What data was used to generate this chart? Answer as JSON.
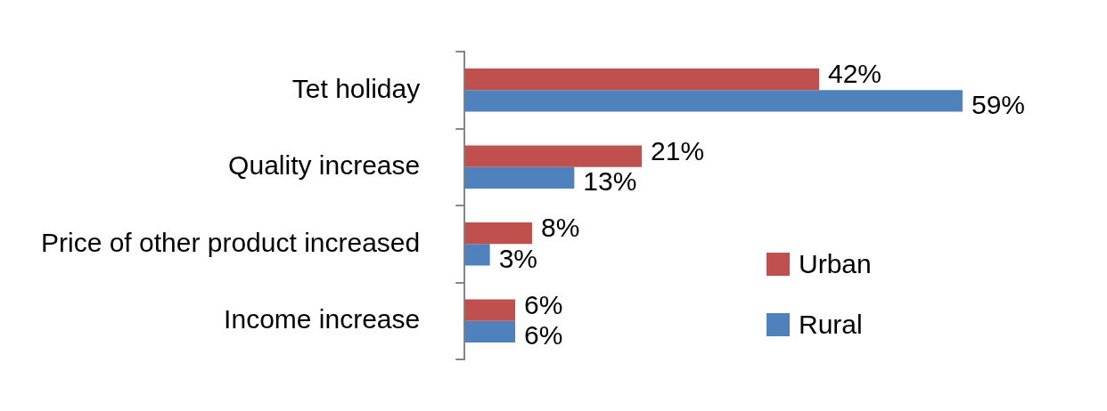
{
  "chart_data": {
    "type": "bar",
    "orientation": "horizontal",
    "tick_labels": "y",
    "categories": [
      "Tet holiday",
      "Quality increase",
      "Price of other product increased",
      "Income increase"
    ],
    "series": [
      {
        "name": "Urban",
        "color": "#c0504d",
        "values": [
          42,
          21,
          8,
          6
        ],
        "value_labels": [
          "42%",
          "21%",
          "8%",
          "6%"
        ]
      },
      {
        "name": "Rural",
        "color": "#4f81bd",
        "values": [
          59,
          13,
          3,
          6
        ],
        "value_labels": [
          "59%",
          "13%",
          "3%",
          "6%"
        ]
      }
    ],
    "legend": "right"
  }
}
